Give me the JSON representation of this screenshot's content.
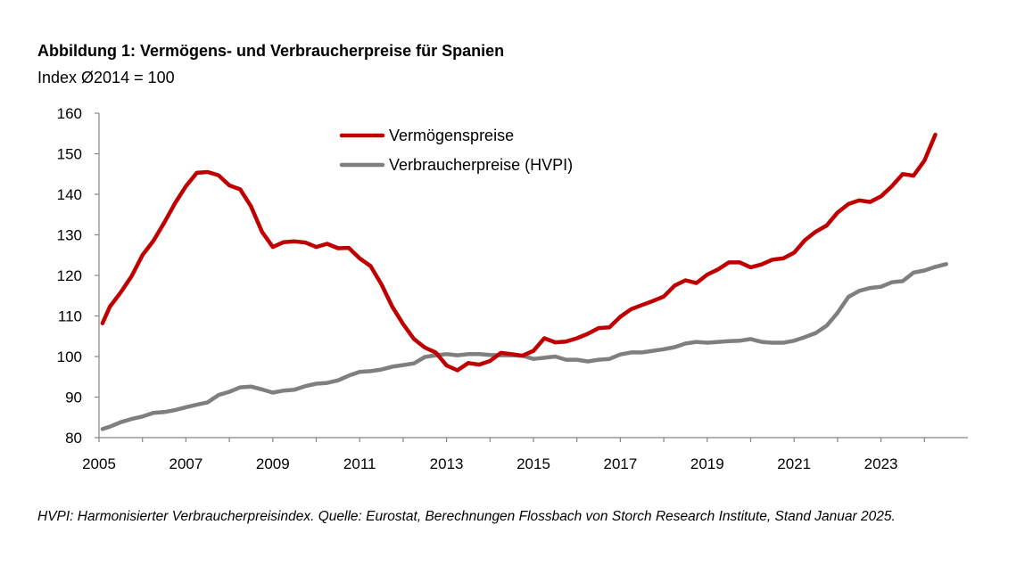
{
  "title": "Abbildung 1: Vermögens- und Verbraucherpreise für Spanien",
  "subtitle": "Index Ø2014 = 100",
  "footnote": "HVPI: Harmonisierter Verbraucherpreisindex. Quelle: Eurostat, Berechnungen Flossbach von Storch Research Institute, Stand Januar 2025.",
  "chart_data": {
    "type": "line",
    "xlim": [
      2005,
      2025
    ],
    "ylim": [
      80,
      160
    ],
    "y_ticks": [
      80,
      90,
      100,
      110,
      120,
      130,
      140,
      150,
      160
    ],
    "x_tick_labels": [
      "2005",
      "2007",
      "2009",
      "2011",
      "2013",
      "2015",
      "2017",
      "2019",
      "2021",
      "2023"
    ],
    "x_tick_values": [
      2005,
      2007,
      2009,
      2011,
      2013,
      2015,
      2017,
      2019,
      2021,
      2023
    ],
    "grid": false,
    "legend": "top-center",
    "series": [
      {
        "name": "Vermögenspreise",
        "color": "#C00000",
        "points": [
          [
            2005.08,
            108.2
          ],
          [
            2005.25,
            112.3
          ],
          [
            2005.5,
            115.8
          ],
          [
            2005.75,
            119.8
          ],
          [
            2006.0,
            125.0
          ],
          [
            2006.25,
            128.5
          ],
          [
            2006.5,
            133.0
          ],
          [
            2006.75,
            137.8
          ],
          [
            2007.0,
            142.0
          ],
          [
            2007.25,
            145.3
          ],
          [
            2007.5,
            145.5
          ],
          [
            2007.75,
            144.7
          ],
          [
            2008.0,
            142.2
          ],
          [
            2008.25,
            141.2
          ],
          [
            2008.5,
            137.0
          ],
          [
            2008.75,
            130.8
          ],
          [
            2009.0,
            127.0
          ],
          [
            2009.25,
            128.2
          ],
          [
            2009.5,
            128.4
          ],
          [
            2009.75,
            128.1
          ],
          [
            2010.0,
            127.0
          ],
          [
            2010.25,
            127.8
          ],
          [
            2010.5,
            126.7
          ],
          [
            2010.75,
            126.8
          ],
          [
            2011.0,
            124.2
          ],
          [
            2011.25,
            122.3
          ],
          [
            2011.5,
            117.8
          ],
          [
            2011.75,
            112.3
          ],
          [
            2012.0,
            108.0
          ],
          [
            2012.25,
            104.3
          ],
          [
            2012.5,
            102.2
          ],
          [
            2012.75,
            101.0
          ],
          [
            2013.0,
            97.8
          ],
          [
            2013.25,
            96.6
          ],
          [
            2013.5,
            98.4
          ],
          [
            2013.75,
            98.0
          ],
          [
            2014.0,
            98.9
          ],
          [
            2014.25,
            100.9
          ],
          [
            2014.5,
            100.6
          ],
          [
            2014.75,
            100.2
          ],
          [
            2015.0,
            101.4
          ],
          [
            2015.25,
            104.5
          ],
          [
            2015.5,
            103.5
          ],
          [
            2015.75,
            103.7
          ],
          [
            2016.0,
            104.5
          ],
          [
            2016.25,
            105.6
          ],
          [
            2016.5,
            107.0
          ],
          [
            2016.75,
            107.2
          ],
          [
            2017.0,
            109.8
          ],
          [
            2017.25,
            111.7
          ],
          [
            2017.5,
            112.7
          ],
          [
            2017.75,
            113.7
          ],
          [
            2018.0,
            114.8
          ],
          [
            2018.25,
            117.5
          ],
          [
            2018.5,
            118.8
          ],
          [
            2018.75,
            118.1
          ],
          [
            2019.0,
            120.2
          ],
          [
            2019.25,
            121.5
          ],
          [
            2019.5,
            123.2
          ],
          [
            2019.75,
            123.2
          ],
          [
            2020.0,
            122.0
          ],
          [
            2020.25,
            122.7
          ],
          [
            2020.5,
            123.9
          ],
          [
            2020.75,
            124.2
          ],
          [
            2021.0,
            125.6
          ],
          [
            2021.25,
            128.7
          ],
          [
            2021.5,
            130.8
          ],
          [
            2021.75,
            132.3
          ],
          [
            2022.0,
            135.5
          ],
          [
            2022.25,
            137.6
          ],
          [
            2022.5,
            138.5
          ],
          [
            2022.75,
            138.1
          ],
          [
            2023.0,
            139.5
          ],
          [
            2023.25,
            142.0
          ],
          [
            2023.5,
            145.0
          ],
          [
            2023.75,
            144.6
          ],
          [
            2024.0,
            148.3
          ],
          [
            2024.25,
            154.7
          ]
        ]
      },
      {
        "name": "Verbraucherpreise (HVPI)",
        "color": "#7F7F7F",
        "points": [
          [
            2005.08,
            82.1
          ],
          [
            2005.25,
            82.7
          ],
          [
            2005.5,
            83.8
          ],
          [
            2005.75,
            84.6
          ],
          [
            2006.0,
            85.2
          ],
          [
            2006.25,
            86.1
          ],
          [
            2006.5,
            86.3
          ],
          [
            2006.75,
            86.8
          ],
          [
            2007.0,
            87.5
          ],
          [
            2007.25,
            88.1
          ],
          [
            2007.5,
            88.7
          ],
          [
            2007.75,
            90.5
          ],
          [
            2008.0,
            91.3
          ],
          [
            2008.25,
            92.4
          ],
          [
            2008.5,
            92.6
          ],
          [
            2008.75,
            91.9
          ],
          [
            2009.0,
            91.1
          ],
          [
            2009.25,
            91.6
          ],
          [
            2009.5,
            91.8
          ],
          [
            2009.75,
            92.7
          ],
          [
            2010.0,
            93.3
          ],
          [
            2010.25,
            93.5
          ],
          [
            2010.5,
            94.1
          ],
          [
            2010.75,
            95.3
          ],
          [
            2011.0,
            96.2
          ],
          [
            2011.25,
            96.4
          ],
          [
            2011.5,
            96.8
          ],
          [
            2011.75,
            97.5
          ],
          [
            2012.0,
            97.9
          ],
          [
            2012.25,
            98.3
          ],
          [
            2012.5,
            99.9
          ],
          [
            2012.75,
            100.3
          ],
          [
            2013.0,
            100.6
          ],
          [
            2013.25,
            100.3
          ],
          [
            2013.5,
            100.6
          ],
          [
            2013.75,
            100.6
          ],
          [
            2014.0,
            100.4
          ],
          [
            2014.25,
            100.3
          ],
          [
            2014.5,
            100.3
          ],
          [
            2014.75,
            100.2
          ],
          [
            2015.0,
            99.4
          ],
          [
            2015.25,
            99.7
          ],
          [
            2015.5,
            100.0
          ],
          [
            2015.75,
            99.2
          ],
          [
            2016.0,
            99.2
          ],
          [
            2016.25,
            98.8
          ],
          [
            2016.5,
            99.2
          ],
          [
            2016.75,
            99.4
          ],
          [
            2017.0,
            100.5
          ],
          [
            2017.25,
            101.0
          ],
          [
            2017.5,
            101.0
          ],
          [
            2017.75,
            101.4
          ],
          [
            2018.0,
            101.8
          ],
          [
            2018.25,
            102.3
          ],
          [
            2018.5,
            103.2
          ],
          [
            2018.75,
            103.6
          ],
          [
            2019.0,
            103.4
          ],
          [
            2019.25,
            103.6
          ],
          [
            2019.5,
            103.8
          ],
          [
            2019.75,
            103.9
          ],
          [
            2020.0,
            104.3
          ],
          [
            2020.25,
            103.6
          ],
          [
            2020.5,
            103.4
          ],
          [
            2020.75,
            103.4
          ],
          [
            2021.0,
            103.9
          ],
          [
            2021.25,
            104.8
          ],
          [
            2021.5,
            105.8
          ],
          [
            2021.75,
            107.6
          ],
          [
            2022.0,
            110.8
          ],
          [
            2022.25,
            114.7
          ],
          [
            2022.5,
            116.2
          ],
          [
            2022.75,
            116.9
          ],
          [
            2023.0,
            117.2
          ],
          [
            2023.25,
            118.3
          ],
          [
            2023.5,
            118.6
          ],
          [
            2023.75,
            120.7
          ],
          [
            2024.0,
            121.2
          ],
          [
            2024.25,
            122.1
          ],
          [
            2024.5,
            122.8
          ]
        ]
      }
    ]
  }
}
